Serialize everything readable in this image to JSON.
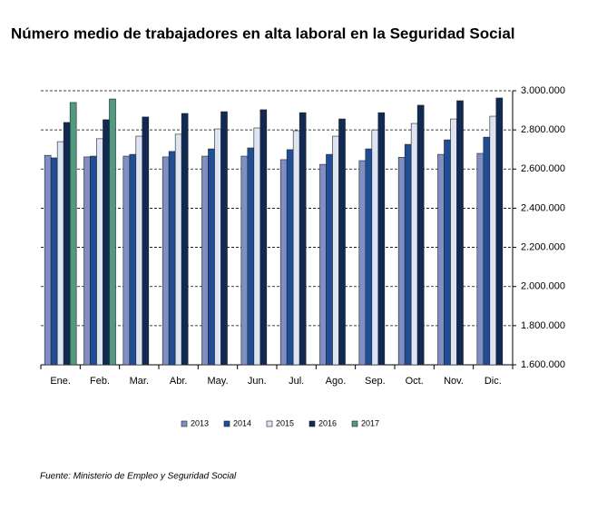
{
  "chart_data": {
    "type": "bar",
    "title": "Número medio de trabajadores en alta laboral en la Seguridad Social",
    "source": "Fuente: Ministerio de Empleo y Seguridad Social",
    "categories": [
      "Ene.",
      "Feb.",
      "Mar.",
      "Abr.",
      "May.",
      "Jun.",
      "Jul.",
      "Ago.",
      "Sep.",
      "Oct.",
      "Nov.",
      "Dic."
    ],
    "series": [
      {
        "name": "2013",
        "color": "#7f8fc4",
        "values": [
          2670000,
          2662000,
          2666000,
          2662000,
          2666000,
          2666000,
          2648000,
          2624000,
          2643000,
          2660000,
          2675000,
          2680000
        ]
      },
      {
        "name": "2014",
        "color": "#1f4e96",
        "values": [
          2657000,
          2666000,
          2675000,
          2690000,
          2703000,
          2708000,
          2699000,
          2675000,
          2703000,
          2726000,
          2749000,
          2763000
        ]
      },
      {
        "name": "2015",
        "color": "#dde4f3",
        "values": [
          2740000,
          2755000,
          2768000,
          2778000,
          2805000,
          2810000,
          2796000,
          2768000,
          2800000,
          2833000,
          2856000,
          2870000
        ]
      },
      {
        "name": "2016",
        "color": "#102a54",
        "values": [
          2838000,
          2852000,
          2866000,
          2884000,
          2893000,
          2903000,
          2888000,
          2856000,
          2888000,
          2926000,
          2949000,
          2963000
        ]
      },
      {
        "name": "2017",
        "color": "#4f9a80",
        "values": [
          2940000,
          2958000,
          null,
          null,
          null,
          null,
          null,
          null,
          null,
          null,
          null,
          null
        ]
      }
    ],
    "ylim": [
      1600000,
      3000000
    ],
    "yticks": [
      {
        "value": 1600000,
        "label": "1.600.000"
      },
      {
        "value": 1800000,
        "label": "1.800.000"
      },
      {
        "value": 2000000,
        "label": "2.000.000"
      },
      {
        "value": 2200000,
        "label": "2.200.000"
      },
      {
        "value": 2400000,
        "label": "2.400.000"
      },
      {
        "value": 2600000,
        "label": "2.600.000"
      },
      {
        "value": 2800000,
        "label": "2.800.000"
      },
      {
        "value": 3000000,
        "label": "3.000.000"
      }
    ],
    "grid": true,
    "legend": "bottom"
  }
}
